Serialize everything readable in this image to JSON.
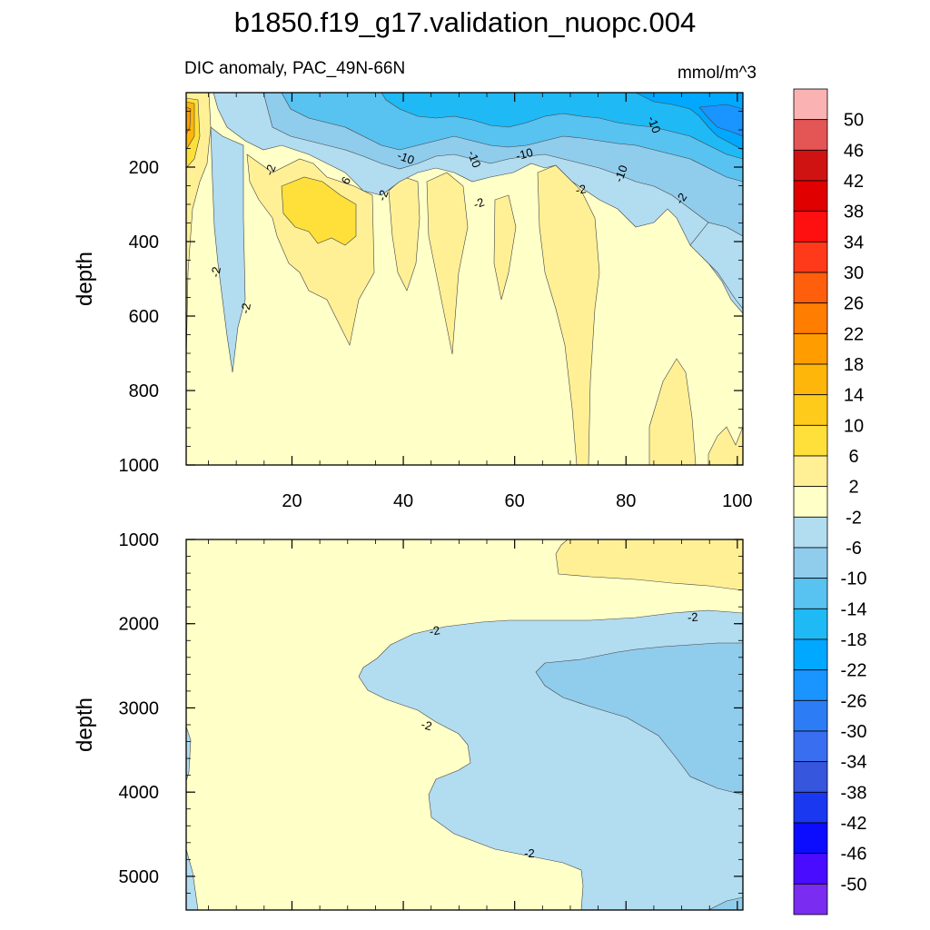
{
  "title": "b1850.f19_g17.validation_nuopc.004",
  "subtitle_left": "DIC anomaly, PAC_49N-66N",
  "subtitle_right": "mmol/m^3",
  "chart_data": [
    {
      "type": "contour",
      "panel": "top",
      "ylabel": "depth",
      "xlim": [
        1,
        101
      ],
      "ylim": [
        0,
        1000
      ],
      "x_ticks": [
        "20",
        "40",
        "60",
        "80",
        "100"
      ],
      "y_ticks": [
        "200",
        "400",
        "600",
        "800",
        "1000"
      ],
      "contour_labels": [
        "-2",
        "-2",
        "-2",
        "6",
        "-2",
        "-10",
        "-10",
        "-2",
        "-10",
        "-2",
        "-10",
        "-10",
        "-2"
      ]
    },
    {
      "type": "contour",
      "panel": "bottom",
      "ylabel": "depth",
      "xlim": [
        1,
        101
      ],
      "ylim": [
        1000,
        5400
      ],
      "x_ticks": [],
      "y_ticks": [
        "1000",
        "2000",
        "3000",
        "4000",
        "5000"
      ],
      "contour_labels": [
        "-2",
        "-2",
        "-2",
        "-2"
      ]
    }
  ],
  "colorbar": {
    "labels": [
      "50",
      "46",
      "42",
      "38",
      "34",
      "30",
      "26",
      "22",
      "18",
      "14",
      "10",
      "6",
      "2",
      "-2",
      "-6",
      "-10",
      "-14",
      "-18",
      "-22",
      "-26",
      "-30",
      "-34",
      "-38",
      "-42",
      "-46",
      "-50"
    ],
    "colors": [
      "#fbb2b2",
      "#e45555",
      "#cf1313",
      "#e00000",
      "#ff1010",
      "#ff3a1a",
      "#ff5e0d",
      "#ff7d00",
      "#ff9d00",
      "#ffb60a",
      "#ffcb1a",
      "#ffe03a",
      "#fff096",
      "#ffffc8",
      "#b2dcf0",
      "#90ccec",
      "#58c2f0",
      "#1fb9f5",
      "#00a8ff",
      "#1a94ff",
      "#2c7df5",
      "#3a6ef0",
      "#3656de",
      "#1a38f0",
      "#0c0cff",
      "#4a0cff",
      "#7a2cf0"
    ]
  }
}
